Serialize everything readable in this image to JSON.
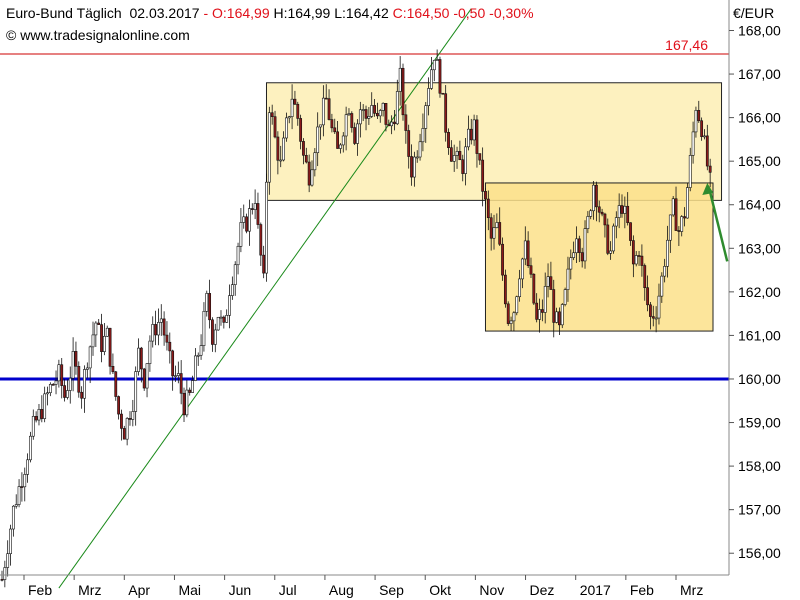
{
  "header": {
    "instrument": "Euro-Bund Täglich",
    "date": "02.03.2017",
    "sep": " - ",
    "open": "O:164,99",
    "high": "H:164,99",
    "low": "L:164,42",
    "close": "C:164,50",
    "change": "-0,50",
    "change_pct": "-0,30%",
    "source": "© www.tradesignalonline.com"
  },
  "colors": {
    "bull": "#ffffff",
    "bear": "#8b1a1a",
    "support_line": "#0000cc",
    "resistance_line": "#cc0000",
    "trend_line": "#1a8a1a",
    "arrow": "#2e8b2e",
    "box_upper": "#fdeeb4",
    "box_lower": "#fbe08a"
  },
  "chart_data": {
    "type": "candlestick",
    "title": "Euro-Bund Täglich",
    "unit": "€/EUR",
    "ylim": [
      155.5,
      168.7
    ],
    "y_ticks": [
      "156,00",
      "157,00",
      "158,00",
      "159,00",
      "160,00",
      "161,00",
      "162,00",
      "163,00",
      "164,00",
      "165,00",
      "166,00",
      "167,00",
      "168,00"
    ],
    "x_ticks": [
      "Feb",
      "Mrz",
      "Apr",
      "Mai",
      "Jun",
      "Jul",
      "Aug",
      "Sep",
      "Okt",
      "Nov",
      "Dez",
      "2017",
      "Feb",
      "Mrz"
    ],
    "close_path": [
      [
        0,
        155.4
      ],
      [
        4,
        157.0
      ],
      [
        8,
        158.0
      ],
      [
        11,
        158.9
      ],
      [
        14,
        159.3
      ],
      [
        17,
        159.8
      ],
      [
        20,
        160.1
      ],
      [
        22,
        159.6
      ],
      [
        25,
        160.4
      ],
      [
        28,
        159.7
      ],
      [
        30,
        160.5
      ],
      [
        33,
        161.3
      ],
      [
        35,
        160.8
      ],
      [
        37,
        161.0
      ],
      [
        39,
        160.0
      ],
      [
        41,
        159.2
      ],
      [
        43,
        158.8
      ],
      [
        46,
        159.5
      ],
      [
        48,
        160.6
      ],
      [
        50,
        160.0
      ],
      [
        52,
        160.9
      ],
      [
        54,
        161.2
      ],
      [
        56,
        161.4
      ],
      [
        58,
        160.7
      ],
      [
        60,
        160.1
      ],
      [
        62,
        160.0
      ],
      [
        64,
        159.4
      ],
      [
        66,
        159.6
      ],
      [
        68,
        160.3
      ],
      [
        70,
        160.9
      ],
      [
        72,
        161.8
      ],
      [
        74,
        161.0
      ],
      [
        76,
        161.5
      ],
      [
        78,
        161.1
      ],
      [
        80,
        162.1
      ],
      [
        82,
        162.7
      ],
      [
        84,
        163.4
      ],
      [
        86,
        163.6
      ],
      [
        88,
        164.0
      ],
      [
        89,
        164.2
      ],
      [
        90,
        163.4
      ],
      [
        91,
        162.8
      ],
      [
        92,
        162.2
      ],
      [
        93,
        164.6
      ],
      [
        94,
        166.3
      ],
      [
        96,
        165.5
      ],
      [
        98,
        164.9
      ],
      [
        100,
        165.8
      ],
      [
        102,
        166.5
      ],
      [
        104,
        166.0
      ],
      [
        106,
        165.1
      ],
      [
        108,
        164.7
      ],
      [
        110,
        165.4
      ],
      [
        112,
        166.0
      ],
      [
        114,
        166.4
      ],
      [
        116,
        165.7
      ],
      [
        118,
        165.2
      ],
      [
        120,
        165.8
      ],
      [
        122,
        166.3
      ],
      [
        124,
        165.6
      ],
      [
        126,
        166.2
      ],
      [
        128,
        166.0
      ],
      [
        130,
        166.3
      ],
      [
        132,
        165.9
      ],
      [
        134,
        166.2
      ],
      [
        136,
        165.7
      ],
      [
        138,
        166.1
      ],
      [
        140,
        166.9
      ],
      [
        142,
        165.5
      ],
      [
        144,
        164.8
      ],
      [
        146,
        165.3
      ],
      [
        148,
        166.0
      ],
      [
        150,
        166.8
      ],
      [
        152,
        167.5
      ],
      [
        154,
        166.8
      ],
      [
        156,
        165.8
      ],
      [
        158,
        165.2
      ],
      [
        160,
        165.0
      ],
      [
        162,
        164.9
      ],
      [
        164,
        165.5
      ],
      [
        166,
        165.8
      ],
      [
        168,
        164.8
      ],
      [
        170,
        164.0
      ],
      [
        172,
        163.2
      ],
      [
        174,
        163.5
      ],
      [
        176,
        162.4
      ],
      [
        178,
        161.4
      ],
      [
        180,
        161.6
      ],
      [
        182,
        162.5
      ],
      [
        184,
        163.0
      ],
      [
        186,
        162.2
      ],
      [
        188,
        161.3
      ],
      [
        190,
        161.6
      ],
      [
        192,
        162.4
      ],
      [
        194,
        161.5
      ],
      [
        196,
        161.1
      ],
      [
        198,
        161.9
      ],
      [
        200,
        162.8
      ],
      [
        202,
        163.4
      ],
      [
        204,
        162.9
      ],
      [
        206,
        163.6
      ],
      [
        208,
        164.5
      ],
      [
        210,
        163.9
      ],
      [
        212,
        163.3
      ],
      [
        214,
        162.9
      ],
      [
        216,
        163.7
      ],
      [
        218,
        164.0
      ],
      [
        220,
        163.5
      ],
      [
        222,
        162.6
      ],
      [
        224,
        163.0
      ],
      [
        226,
        162.0
      ],
      [
        228,
        161.4
      ],
      [
        230,
        161.6
      ],
      [
        232,
        162.3
      ],
      [
        234,
        163.2
      ],
      [
        236,
        163.9
      ],
      [
        238,
        163.4
      ],
      [
        240,
        163.8
      ],
      [
        242,
        165.0
      ],
      [
        244,
        166.3
      ],
      [
        246,
        165.8
      ],
      [
        248,
        164.9
      ],
      [
        249,
        164.5
      ]
    ],
    "x_max": 250,
    "trend_line": {
      "from": [
        20,
        155.2
      ],
      "to": [
        165,
        168.5
      ]
    },
    "support_level": 160.0,
    "resistance_level": 167.46,
    "resistance_label": "167,46",
    "boxes": [
      {
        "name": "upper-range",
        "x": [
          93,
          253
        ],
        "y": [
          164.1,
          166.8
        ]
      },
      {
        "name": "lower-range",
        "x": [
          170,
          250
        ],
        "y": [
          161.1,
          164.5
        ]
      }
    ],
    "arrow": {
      "from": [
        248,
        164.5
      ],
      "to": [
        255,
        162.7
      ]
    }
  }
}
